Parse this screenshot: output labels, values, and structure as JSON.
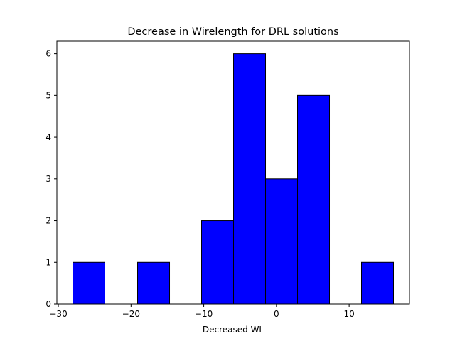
{
  "chart_data": {
    "type": "bar",
    "subtype": "histogram",
    "title": "Decrease in Wirelength for DRL solutions",
    "xlabel": "Decreased WL",
    "ylabel": "",
    "bins": [
      {
        "start": -28.0,
        "end": -23.6,
        "count": 1
      },
      {
        "start": -23.6,
        "end": -19.1,
        "count": 0
      },
      {
        "start": -19.1,
        "end": -14.7,
        "count": 1
      },
      {
        "start": -14.7,
        "end": -10.3,
        "count": 0
      },
      {
        "start": -10.3,
        "end": -5.9,
        "count": 2
      },
      {
        "start": -5.9,
        "end": -1.5,
        "count": 6
      },
      {
        "start": -1.5,
        "end": 2.9,
        "count": 3
      },
      {
        "start": 2.9,
        "end": 7.3,
        "count": 5
      },
      {
        "start": 7.3,
        "end": 11.7,
        "count": 0
      },
      {
        "start": 11.7,
        "end": 16.1,
        "count": 1
      }
    ],
    "xlim": [
      -30.2,
      18.3
    ],
    "ylim": [
      0,
      6.3
    ],
    "xticks": [
      -30,
      -20,
      -10,
      0,
      10
    ],
    "xtick_labels": [
      "−30",
      "−20",
      "−10",
      "0",
      "10"
    ],
    "yticks": [
      0,
      1,
      2,
      3,
      4,
      5,
      6
    ],
    "ytick_labels": [
      "0",
      "1",
      "2",
      "3",
      "4",
      "5",
      "6"
    ],
    "bar_color": "#0000ff",
    "edge_color": "#000000",
    "grid": false
  }
}
